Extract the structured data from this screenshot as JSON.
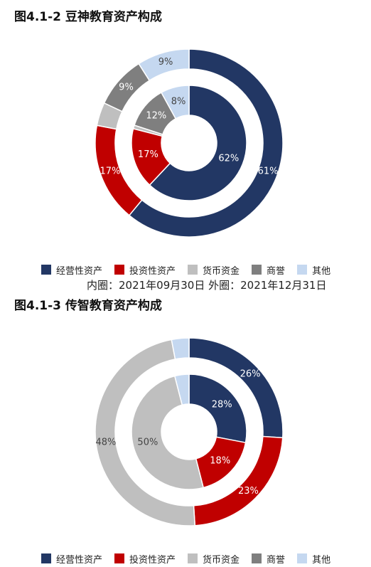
{
  "chart_data": [
    {
      "type": "donut",
      "title": "图4.1-2 豆神教育资产构成",
      "categories": [
        "经营性资产",
        "投资性资产",
        "货币资金",
        "商誉",
        "其他"
      ],
      "colors": [
        "#223764",
        "#c00000",
        "#bfbfbf",
        "#7f7f7f",
        "#c5d8f0"
      ],
      "series": [
        {
          "ring": "outer",
          "values": [
            61,
            17,
            4,
            9,
            9
          ],
          "labels": [
            "61%",
            "17%",
            "",
            "9%",
            "9%"
          ]
        },
        {
          "ring": "inner",
          "values": [
            62,
            17,
            1,
            12,
            8
          ],
          "labels": [
            "62%",
            "17%",
            "",
            "12%",
            "8%"
          ]
        }
      ],
      "note": "内圈：2021年09月30日 外圈：2021年12月31日",
      "legend_position": "bottom"
    },
    {
      "type": "donut",
      "title": "图4.1-3 传智教育资产构成",
      "categories": [
        "经营性资产",
        "投资性资产",
        "货币资金",
        "商誉",
        "其他"
      ],
      "colors": [
        "#223764",
        "#c00000",
        "#bfbfbf",
        "#7f7f7f",
        "#c5d8f0"
      ],
      "series": [
        {
          "ring": "outer",
          "values": [
            26,
            23,
            48,
            0,
            3
          ],
          "labels": [
            "26%",
            "23%",
            "48%",
            "",
            ""
          ]
        },
        {
          "ring": "inner",
          "values": [
            28,
            18,
            50,
            0,
            4
          ],
          "labels": [
            "28%",
            "18%",
            "50%",
            "",
            ""
          ]
        }
      ],
      "legend_position": "bottom"
    }
  ]
}
